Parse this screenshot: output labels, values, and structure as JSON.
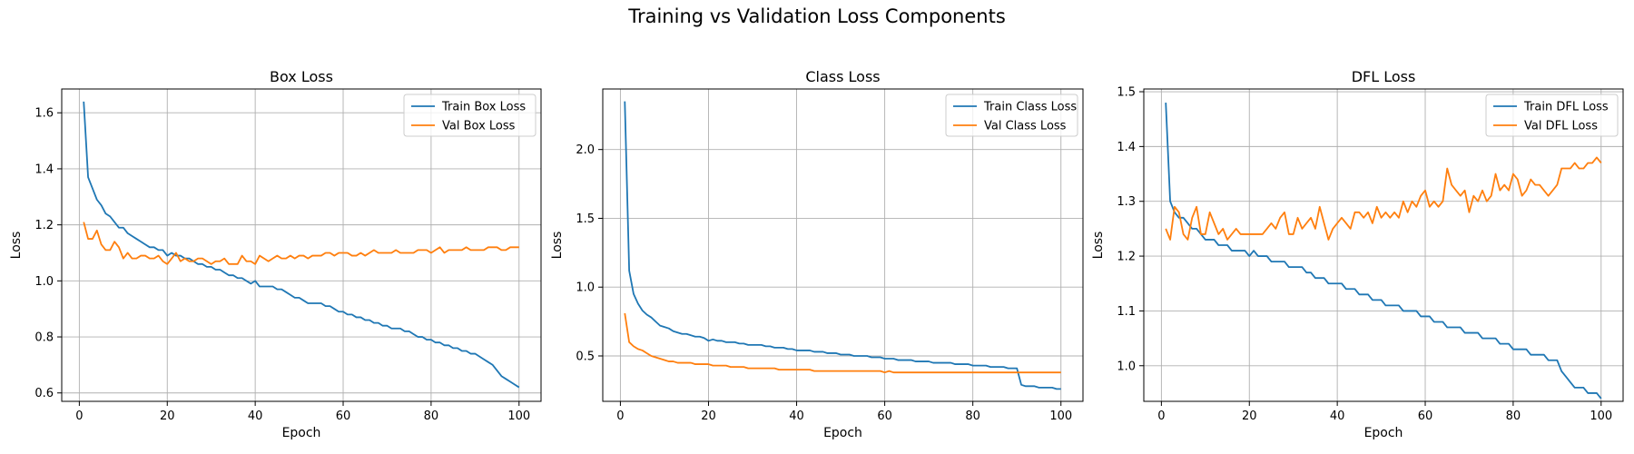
{
  "figure": {
    "title": "Training vs Validation Loss Components"
  },
  "colors": {
    "train": "#1f77b4",
    "val": "#ff7f0e",
    "grid": "#b0b0b0",
    "axes": "#000000"
  },
  "chart_data": [
    {
      "type": "line",
      "title": "Box Loss",
      "xlabel": "Epoch",
      "ylabel": "Loss",
      "xlim": [
        -4,
        105
      ],
      "ylim": [
        0.57,
        1.685
      ],
      "xticks": [
        0,
        20,
        40,
        60,
        80,
        100
      ],
      "yticks": [
        0.6,
        0.8,
        1.0,
        1.2,
        1.4,
        1.6
      ],
      "grid": true,
      "legend": "top-right",
      "x": [
        1,
        2,
        3,
        4,
        5,
        6,
        7,
        8,
        9,
        10,
        11,
        12,
        13,
        14,
        15,
        16,
        17,
        18,
        19,
        20,
        21,
        22,
        23,
        24,
        25,
        26,
        27,
        28,
        29,
        30,
        31,
        32,
        33,
        34,
        35,
        36,
        37,
        38,
        39,
        40,
        41,
        42,
        43,
        44,
        45,
        46,
        47,
        48,
        49,
        50,
        51,
        52,
        53,
        54,
        55,
        56,
        57,
        58,
        59,
        60,
        61,
        62,
        63,
        64,
        65,
        66,
        67,
        68,
        69,
        70,
        71,
        72,
        73,
        74,
        75,
        76,
        77,
        78,
        79,
        80,
        81,
        82,
        83,
        84,
        85,
        86,
        87,
        88,
        89,
        90,
        91,
        92,
        93,
        94,
        95,
        96,
        97,
        98,
        99,
        100
      ],
      "series": [
        {
          "name": "Train Box Loss",
          "values": [
            1.64,
            1.37,
            1.33,
            1.29,
            1.27,
            1.24,
            1.23,
            1.21,
            1.19,
            1.19,
            1.17,
            1.16,
            1.15,
            1.14,
            1.13,
            1.12,
            1.12,
            1.11,
            1.11,
            1.09,
            1.1,
            1.09,
            1.09,
            1.08,
            1.08,
            1.07,
            1.06,
            1.06,
            1.05,
            1.05,
            1.04,
            1.04,
            1.03,
            1.02,
            1.02,
            1.01,
            1.01,
            1.0,
            0.99,
            1.0,
            0.98,
            0.98,
            0.98,
            0.98,
            0.97,
            0.97,
            0.96,
            0.95,
            0.94,
            0.94,
            0.93,
            0.92,
            0.92,
            0.92,
            0.92,
            0.91,
            0.91,
            0.9,
            0.89,
            0.89,
            0.88,
            0.88,
            0.87,
            0.87,
            0.86,
            0.86,
            0.85,
            0.85,
            0.84,
            0.84,
            0.83,
            0.83,
            0.83,
            0.82,
            0.82,
            0.81,
            0.8,
            0.8,
            0.79,
            0.79,
            0.78,
            0.78,
            0.77,
            0.77,
            0.76,
            0.76,
            0.75,
            0.75,
            0.74,
            0.74,
            0.73,
            0.72,
            0.71,
            0.7,
            0.68,
            0.66,
            0.65,
            0.64,
            0.63,
            0.62
          ]
        },
        {
          "name": "Val Box Loss",
          "values": [
            1.21,
            1.15,
            1.15,
            1.18,
            1.13,
            1.11,
            1.11,
            1.14,
            1.12,
            1.08,
            1.1,
            1.08,
            1.08,
            1.09,
            1.09,
            1.08,
            1.08,
            1.09,
            1.07,
            1.06,
            1.08,
            1.1,
            1.07,
            1.08,
            1.07,
            1.07,
            1.08,
            1.08,
            1.07,
            1.06,
            1.07,
            1.07,
            1.08,
            1.06,
            1.06,
            1.06,
            1.09,
            1.07,
            1.07,
            1.06,
            1.09,
            1.08,
            1.07,
            1.08,
            1.09,
            1.08,
            1.08,
            1.09,
            1.08,
            1.09,
            1.09,
            1.08,
            1.09,
            1.09,
            1.09,
            1.1,
            1.1,
            1.09,
            1.1,
            1.1,
            1.1,
            1.09,
            1.09,
            1.1,
            1.09,
            1.1,
            1.11,
            1.1,
            1.1,
            1.1,
            1.1,
            1.11,
            1.1,
            1.1,
            1.1,
            1.1,
            1.11,
            1.11,
            1.11,
            1.1,
            1.11,
            1.12,
            1.1,
            1.11,
            1.11,
            1.11,
            1.11,
            1.12,
            1.11,
            1.11,
            1.11,
            1.11,
            1.12,
            1.12,
            1.12,
            1.11,
            1.11,
            1.12,
            1.12,
            1.12
          ]
        }
      ]
    },
    {
      "type": "line",
      "title": "Class Loss",
      "xlabel": "Epoch",
      "ylabel": "Loss",
      "xlim": [
        -4,
        105
      ],
      "ylim": [
        0.17,
        2.44
      ],
      "xticks": [
        0,
        20,
        40,
        60,
        80,
        100
      ],
      "yticks": [
        0.5,
        1.0,
        1.5,
        2.0
      ],
      "grid": true,
      "legend": "top-right",
      "x": [
        1,
        2,
        3,
        4,
        5,
        6,
        7,
        8,
        9,
        10,
        11,
        12,
        13,
        14,
        15,
        16,
        17,
        18,
        19,
        20,
        21,
        22,
        23,
        24,
        25,
        26,
        27,
        28,
        29,
        30,
        31,
        32,
        33,
        34,
        35,
        36,
        37,
        38,
        39,
        40,
        41,
        42,
        43,
        44,
        45,
        46,
        47,
        48,
        49,
        50,
        51,
        52,
        53,
        54,
        55,
        56,
        57,
        58,
        59,
        60,
        61,
        62,
        63,
        64,
        65,
        66,
        67,
        68,
        69,
        70,
        71,
        72,
        73,
        74,
        75,
        76,
        77,
        78,
        79,
        80,
        81,
        82,
        83,
        84,
        85,
        86,
        87,
        88,
        89,
        90,
        91,
        92,
        93,
        94,
        95,
        96,
        97,
        98,
        99,
        100
      ],
      "series": [
        {
          "name": "Train Class Loss",
          "values": [
            2.35,
            1.12,
            0.95,
            0.88,
            0.83,
            0.8,
            0.78,
            0.75,
            0.72,
            0.71,
            0.7,
            0.68,
            0.67,
            0.66,
            0.66,
            0.65,
            0.64,
            0.64,
            0.63,
            0.61,
            0.62,
            0.61,
            0.61,
            0.6,
            0.6,
            0.6,
            0.59,
            0.59,
            0.58,
            0.58,
            0.58,
            0.58,
            0.57,
            0.57,
            0.56,
            0.56,
            0.56,
            0.55,
            0.55,
            0.54,
            0.54,
            0.54,
            0.54,
            0.53,
            0.53,
            0.53,
            0.52,
            0.52,
            0.52,
            0.51,
            0.51,
            0.51,
            0.5,
            0.5,
            0.5,
            0.5,
            0.49,
            0.49,
            0.49,
            0.48,
            0.48,
            0.48,
            0.47,
            0.47,
            0.47,
            0.47,
            0.46,
            0.46,
            0.46,
            0.46,
            0.45,
            0.45,
            0.45,
            0.45,
            0.45,
            0.44,
            0.44,
            0.44,
            0.44,
            0.43,
            0.43,
            0.43,
            0.43,
            0.42,
            0.42,
            0.42,
            0.42,
            0.41,
            0.41,
            0.41,
            0.29,
            0.28,
            0.28,
            0.28,
            0.27,
            0.27,
            0.27,
            0.27,
            0.26,
            0.26
          ]
        },
        {
          "name": "Val Class Loss",
          "values": [
            0.81,
            0.6,
            0.57,
            0.55,
            0.54,
            0.52,
            0.5,
            0.49,
            0.48,
            0.47,
            0.46,
            0.46,
            0.45,
            0.45,
            0.45,
            0.45,
            0.44,
            0.44,
            0.44,
            0.44,
            0.43,
            0.43,
            0.43,
            0.43,
            0.42,
            0.42,
            0.42,
            0.42,
            0.41,
            0.41,
            0.41,
            0.41,
            0.41,
            0.41,
            0.41,
            0.4,
            0.4,
            0.4,
            0.4,
            0.4,
            0.4,
            0.4,
            0.4,
            0.39,
            0.39,
            0.39,
            0.39,
            0.39,
            0.39,
            0.39,
            0.39,
            0.39,
            0.39,
            0.39,
            0.39,
            0.39,
            0.39,
            0.39,
            0.39,
            0.38,
            0.39,
            0.38,
            0.38,
            0.38,
            0.38,
            0.38,
            0.38,
            0.38,
            0.38,
            0.38,
            0.38,
            0.38,
            0.38,
            0.38,
            0.38,
            0.38,
            0.38,
            0.38,
            0.38,
            0.38,
            0.38,
            0.38,
            0.38,
            0.38,
            0.38,
            0.38,
            0.38,
            0.38,
            0.38,
            0.38,
            0.38,
            0.38,
            0.38,
            0.38,
            0.38,
            0.38,
            0.38,
            0.38,
            0.38,
            0.38
          ]
        }
      ]
    },
    {
      "type": "line",
      "title": "DFL Loss",
      "xlabel": "Epoch",
      "ylabel": "Loss",
      "xlim": [
        -4,
        105
      ],
      "ylim": [
        0.935,
        1.505
      ],
      "xticks": [
        0,
        20,
        40,
        60,
        80,
        100
      ],
      "yticks": [
        1.0,
        1.1,
        1.2,
        1.3,
        1.4,
        1.5
      ],
      "grid": true,
      "legend": "top-right",
      "x": [
        1,
        2,
        3,
        4,
        5,
        6,
        7,
        8,
        9,
        10,
        11,
        12,
        13,
        14,
        15,
        16,
        17,
        18,
        19,
        20,
        21,
        22,
        23,
        24,
        25,
        26,
        27,
        28,
        29,
        30,
        31,
        32,
        33,
        34,
        35,
        36,
        37,
        38,
        39,
        40,
        41,
        42,
        43,
        44,
        45,
        46,
        47,
        48,
        49,
        50,
        51,
        52,
        53,
        54,
        55,
        56,
        57,
        58,
        59,
        60,
        61,
        62,
        63,
        64,
        65,
        66,
        67,
        68,
        69,
        70,
        71,
        72,
        73,
        74,
        75,
        76,
        77,
        78,
        79,
        80,
        81,
        82,
        83,
        84,
        85,
        86,
        87,
        88,
        89,
        90,
        91,
        92,
        93,
        94,
        95,
        96,
        97,
        98,
        99,
        100
      ],
      "series": [
        {
          "name": "Train DFL Loss",
          "values": [
            1.48,
            1.3,
            1.28,
            1.27,
            1.27,
            1.26,
            1.25,
            1.25,
            1.24,
            1.23,
            1.23,
            1.23,
            1.22,
            1.22,
            1.22,
            1.21,
            1.21,
            1.21,
            1.21,
            1.2,
            1.21,
            1.2,
            1.2,
            1.2,
            1.19,
            1.19,
            1.19,
            1.19,
            1.18,
            1.18,
            1.18,
            1.18,
            1.17,
            1.17,
            1.16,
            1.16,
            1.16,
            1.15,
            1.15,
            1.15,
            1.15,
            1.14,
            1.14,
            1.14,
            1.13,
            1.13,
            1.13,
            1.12,
            1.12,
            1.12,
            1.11,
            1.11,
            1.11,
            1.11,
            1.1,
            1.1,
            1.1,
            1.1,
            1.09,
            1.09,
            1.09,
            1.08,
            1.08,
            1.08,
            1.07,
            1.07,
            1.07,
            1.07,
            1.06,
            1.06,
            1.06,
            1.06,
            1.05,
            1.05,
            1.05,
            1.05,
            1.04,
            1.04,
            1.04,
            1.03,
            1.03,
            1.03,
            1.03,
            1.02,
            1.02,
            1.02,
            1.02,
            1.01,
            1.01,
            1.01,
            0.99,
            0.98,
            0.97,
            0.96,
            0.96,
            0.96,
            0.95,
            0.95,
            0.95,
            0.94
          ]
        },
        {
          "name": "Val DFL Loss",
          "values": [
            1.25,
            1.23,
            1.29,
            1.28,
            1.24,
            1.23,
            1.27,
            1.29,
            1.24,
            1.24,
            1.28,
            1.26,
            1.24,
            1.25,
            1.23,
            1.24,
            1.25,
            1.24,
            1.24,
            1.24,
            1.24,
            1.24,
            1.24,
            1.25,
            1.26,
            1.25,
            1.27,
            1.28,
            1.24,
            1.24,
            1.27,
            1.25,
            1.26,
            1.27,
            1.25,
            1.29,
            1.26,
            1.23,
            1.25,
            1.26,
            1.27,
            1.26,
            1.25,
            1.28,
            1.28,
            1.27,
            1.28,
            1.26,
            1.29,
            1.27,
            1.28,
            1.27,
            1.28,
            1.27,
            1.3,
            1.28,
            1.3,
            1.29,
            1.31,
            1.32,
            1.29,
            1.3,
            1.29,
            1.3,
            1.36,
            1.33,
            1.32,
            1.31,
            1.32,
            1.28,
            1.31,
            1.3,
            1.32,
            1.3,
            1.31,
            1.35,
            1.32,
            1.33,
            1.32,
            1.35,
            1.34,
            1.31,
            1.32,
            1.34,
            1.33,
            1.33,
            1.32,
            1.31,
            1.32,
            1.33,
            1.36,
            1.36,
            1.36,
            1.37,
            1.36,
            1.36,
            1.37,
            1.37,
            1.38,
            1.37
          ]
        }
      ]
    }
  ]
}
